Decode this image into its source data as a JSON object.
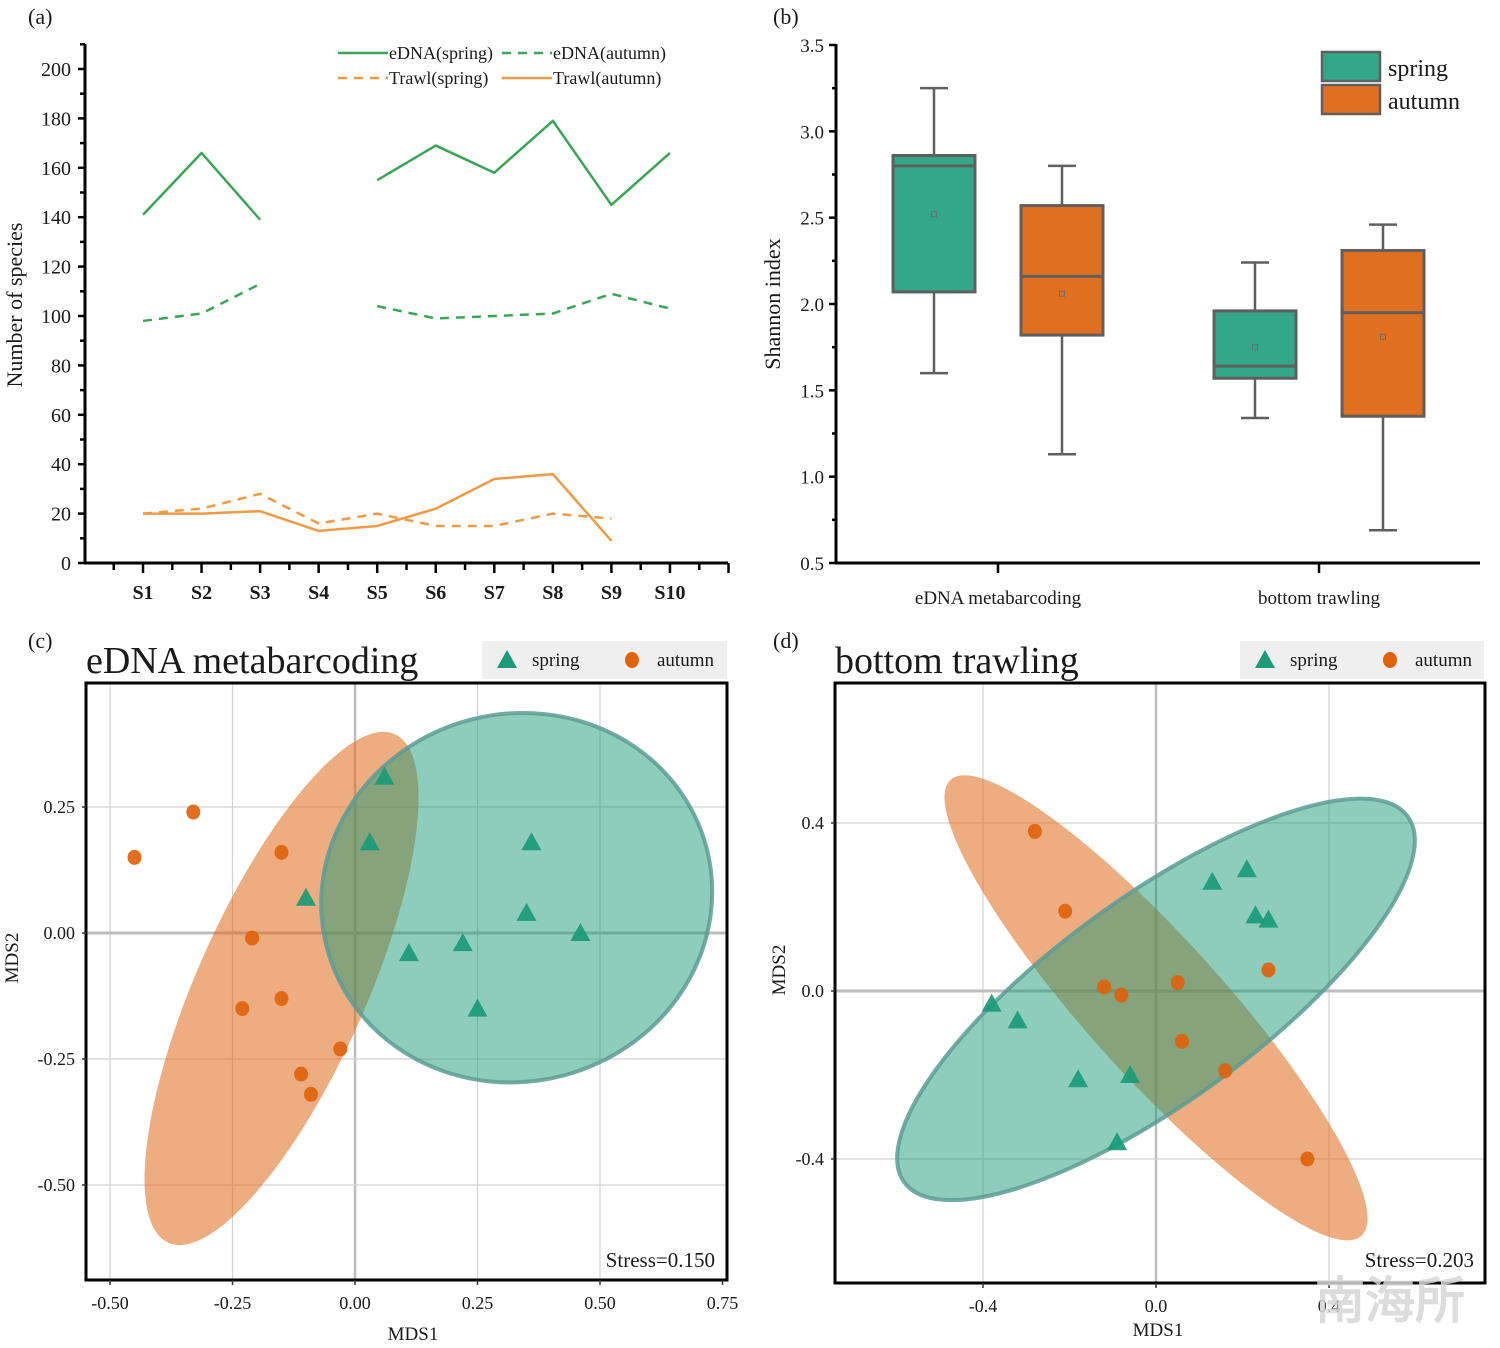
{
  "chart_data": [
    {
      "panel": "(a)",
      "type": "line",
      "title": "",
      "xlabel": "",
      "ylabel": "Number of species",
      "categories": [
        "S1",
        "S2",
        "S3",
        "S4",
        "S5",
        "S6",
        "S7",
        "S8",
        "S9",
        "S10"
      ],
      "ylim": [
        0,
        210
      ],
      "yticks": [
        0,
        20,
        40,
        60,
        80,
        100,
        120,
        140,
        160,
        180,
        200
      ],
      "legend_position": "top-right",
      "series": [
        {
          "name": "eDNA(spring)",
          "color": "#3aa655",
          "dash": "solid",
          "values": [
            141,
            166,
            139,
            null,
            155,
            169,
            158,
            179,
            145,
            166
          ]
        },
        {
          "name": "eDNA(autumn)",
          "color": "#3aa655",
          "dash": "dashed",
          "values": [
            98,
            101,
            113,
            null,
            104,
            99,
            100,
            101,
            109,
            103
          ]
        },
        {
          "name": "Trawl(spring)",
          "color": "#ef9a45",
          "dash": "dashed",
          "values": [
            20,
            22,
            28,
            16,
            20,
            15,
            15,
            20,
            18,
            null
          ]
        },
        {
          "name": "Trawl(autumn)",
          "color": "#ef9a45",
          "dash": "solid",
          "values": [
            20,
            20,
            21,
            13,
            15,
            22,
            34,
            36,
            9,
            null
          ]
        }
      ]
    },
    {
      "panel": "(b)",
      "type": "box",
      "title": "",
      "xlabel": "",
      "ylabel": "Shannon index",
      "categories": [
        "eDNA metabarcoding",
        "bottom trawling"
      ],
      "ylim": [
        0.5,
        3.5
      ],
      "yticks": [
        "0.5",
        "1.0",
        "1.5",
        "2.0",
        "2.5",
        "3.0",
        "3.5"
      ],
      "legend_position": "top-right",
      "series": [
        {
          "name": "spring",
          "color": "#33a886",
          "boxes": [
            {
              "min": 1.6,
              "q1": 2.07,
              "median": 2.8,
              "q3": 2.86,
              "max": 3.25,
              "mean": 2.52
            },
            {
              "min": 1.34,
              "q1": 1.57,
              "median": 1.64,
              "q3": 1.96,
              "max": 2.24,
              "mean": 1.75
            }
          ]
        },
        {
          "name": "autumn",
          "color": "#e06f1f",
          "boxes": [
            {
              "min": 1.13,
              "q1": 1.82,
              "median": 2.16,
              "q3": 2.57,
              "max": 2.8,
              "mean": 2.06
            },
            {
              "min": 0.69,
              "q1": 1.35,
              "median": 1.95,
              "q3": 2.31,
              "max": 2.46,
              "mean": 1.81
            }
          ]
        }
      ]
    },
    {
      "panel": "(c)",
      "type": "scatter",
      "title": "eDNA metabarcoding",
      "xlabel": "MDS1",
      "ylabel": "MDS2",
      "xlim": [
        -0.55,
        0.75
      ],
      "ylim": [
        -0.69,
        0.5
      ],
      "xticks": [
        "-0.50",
        "-0.25",
        "0.00",
        "0.25",
        "0.50",
        "0.75"
      ],
      "yticks": [
        "-0.50",
        "-0.25",
        "0.00",
        "0.25"
      ],
      "annotation": "Stress=0.150",
      "legend_position": "top-right",
      "grid": true,
      "series": [
        {
          "name": "spring",
          "marker": "triangle",
          "color": "#1a9a78",
          "points": [
            [
              0.06,
              0.31
            ],
            [
              0.03,
              0.18
            ],
            [
              0.36,
              0.18
            ],
            [
              -0.1,
              0.07
            ],
            [
              0.35,
              0.04
            ],
            [
              0.46,
              0.0
            ],
            [
              0.22,
              -0.02
            ],
            [
              0.11,
              -0.04
            ],
            [
              0.25,
              -0.15
            ]
          ]
        },
        {
          "name": "autumn",
          "marker": "circle",
          "color": "#e0620c",
          "points": [
            [
              -0.33,
              0.24
            ],
            [
              -0.45,
              0.15
            ],
            [
              -0.15,
              0.16
            ],
            [
              -0.21,
              -0.01
            ],
            [
              -0.23,
              -0.15
            ],
            [
              -0.15,
              -0.13
            ],
            [
              -0.03,
              -0.23
            ],
            [
              -0.11,
              -0.28
            ],
            [
              -0.09,
              -0.32
            ]
          ]
        }
      ],
      "ellipses": [
        {
          "group": "autumn",
          "cx": -0.15,
          "cy": -0.11,
          "rx": 0.56,
          "ry": 0.17,
          "angle_deg": -66
        },
        {
          "group": "spring",
          "cx": 0.33,
          "cy": 0.07,
          "rx": 0.395,
          "ry": 0.37,
          "angle_deg": -15
        }
      ]
    },
    {
      "panel": "(d)",
      "type": "scatter",
      "title": "bottom trawling",
      "xlabel": "MDS1",
      "ylabel": "MDS2",
      "xlim": [
        -0.74,
        0.76
      ],
      "ylim": [
        -0.69,
        0.73
      ],
      "xticks": [
        "-0.4",
        "0.0",
        "0.4"
      ],
      "yticks": [
        "-0.4",
        "0.0",
        "0.4"
      ],
      "annotation": "Stress=0.203",
      "legend_position": "top-right",
      "grid": true,
      "series": [
        {
          "name": "spring",
          "marker": "triangle",
          "color": "#1a9a78",
          "points": [
            [
              0.21,
              0.29
            ],
            [
              0.13,
              0.26
            ],
            [
              0.23,
              0.18
            ],
            [
              0.26,
              0.17
            ],
            [
              -0.38,
              -0.03
            ],
            [
              -0.32,
              -0.07
            ],
            [
              -0.18,
              -0.21
            ],
            [
              -0.06,
              -0.2
            ],
            [
              -0.09,
              -0.36
            ]
          ]
        },
        {
          "name": "autumn",
          "marker": "circle",
          "color": "#e0620c",
          "points": [
            [
              -0.28,
              0.38
            ],
            [
              -0.21,
              0.19
            ],
            [
              0.26,
              0.05
            ],
            [
              -0.12,
              0.01
            ],
            [
              -0.08,
              -0.01
            ],
            [
              0.05,
              0.02
            ],
            [
              0.06,
              -0.12
            ],
            [
              0.16,
              -0.19
            ],
            [
              0.35,
              -0.4
            ]
          ]
        }
      ],
      "ellipses": [
        {
          "group": "autumn",
          "cx": 0.0,
          "cy": -0.04,
          "rx": 0.72,
          "ry": 0.16,
          "angle_deg": 48
        },
        {
          "group": "spring",
          "cx": 0.0,
          "cy": -0.02,
          "rx": 0.73,
          "ry": 0.24,
          "angle_deg": -36
        }
      ]
    }
  ],
  "panel_labels": [
    "(a)",
    "(b)",
    "(c)",
    "(d)"
  ],
  "watermark": "南海所"
}
